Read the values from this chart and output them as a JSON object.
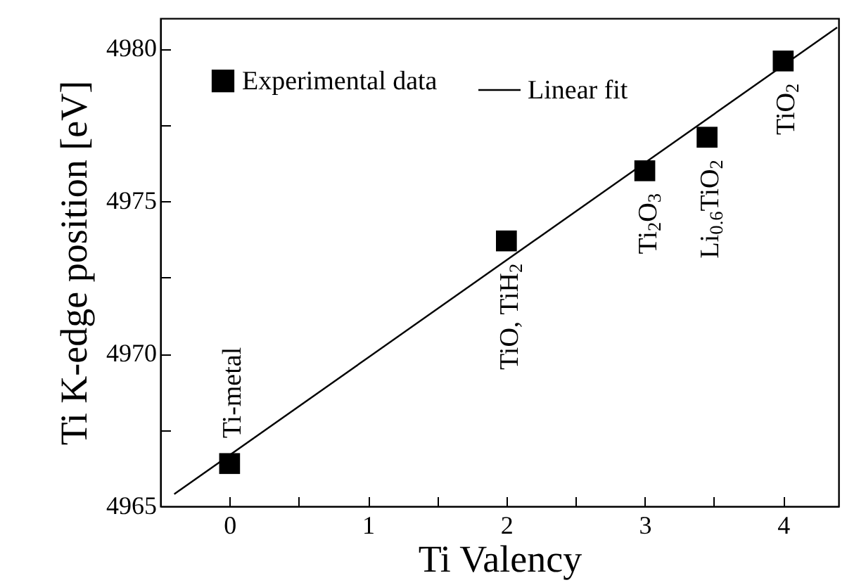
{
  "chart_data": {
    "type": "scatter",
    "xlabel": "Ti Valency",
    "ylabel": "Ti K-edge position [eV]",
    "xlim": [
      -0.5,
      4.4
    ],
    "ylim": [
      4965,
      4981
    ],
    "xticks": [
      0,
      {
        "value": 0.5,
        "label": null
      },
      1,
      {
        "value": 1.5,
        "label": null
      },
      2,
      {
        "value": 2.5,
        "label": null
      },
      3,
      {
        "value": 3.5,
        "label": null
      },
      4
    ],
    "yticks": [
      4965,
      {
        "value": 4967.5,
        "label": null
      },
      4970,
      {
        "value": 4972.5,
        "label": null
      },
      4975,
      {
        "value": 4977.5,
        "label": null
      },
      4980
    ],
    "grid": false,
    "legend": "top left",
    "marker": "square",
    "series": [
      {
        "name": "Experimental data",
        "color": "#000000",
        "x": [
          0,
          2,
          3,
          3.45,
          4
        ],
        "values": [
          4966.4,
          4973.7,
          4976.0,
          4977.1,
          4979.6
        ]
      },
      {
        "name": "Linear fit",
        "type": "line",
        "color": "#000000",
        "marker": "none",
        "line_style": "solid",
        "x": [
          -0.4,
          4.39
        ],
        "values": [
          4965.4,
          4980.7
        ]
      }
    ],
    "annotations": [
      {
        "text": "Ti-metal",
        "x": 0,
        "y": 4966.4
      },
      {
        "text": "TiO, TiH$_{2}$",
        "x": 2,
        "y": 4973.7
      },
      {
        "text": "Ti$_{2}$O$_{3}$",
        "x": 3,
        "y": 4976.0
      },
      {
        "text": "Li$_{0.6}$TiO$_{2}$",
        "x": 3.45,
        "y": 4977.1
      },
      {
        "text": "TiO$_{2}$",
        "x": 4,
        "y": 4979.6
      }
    ]
  }
}
